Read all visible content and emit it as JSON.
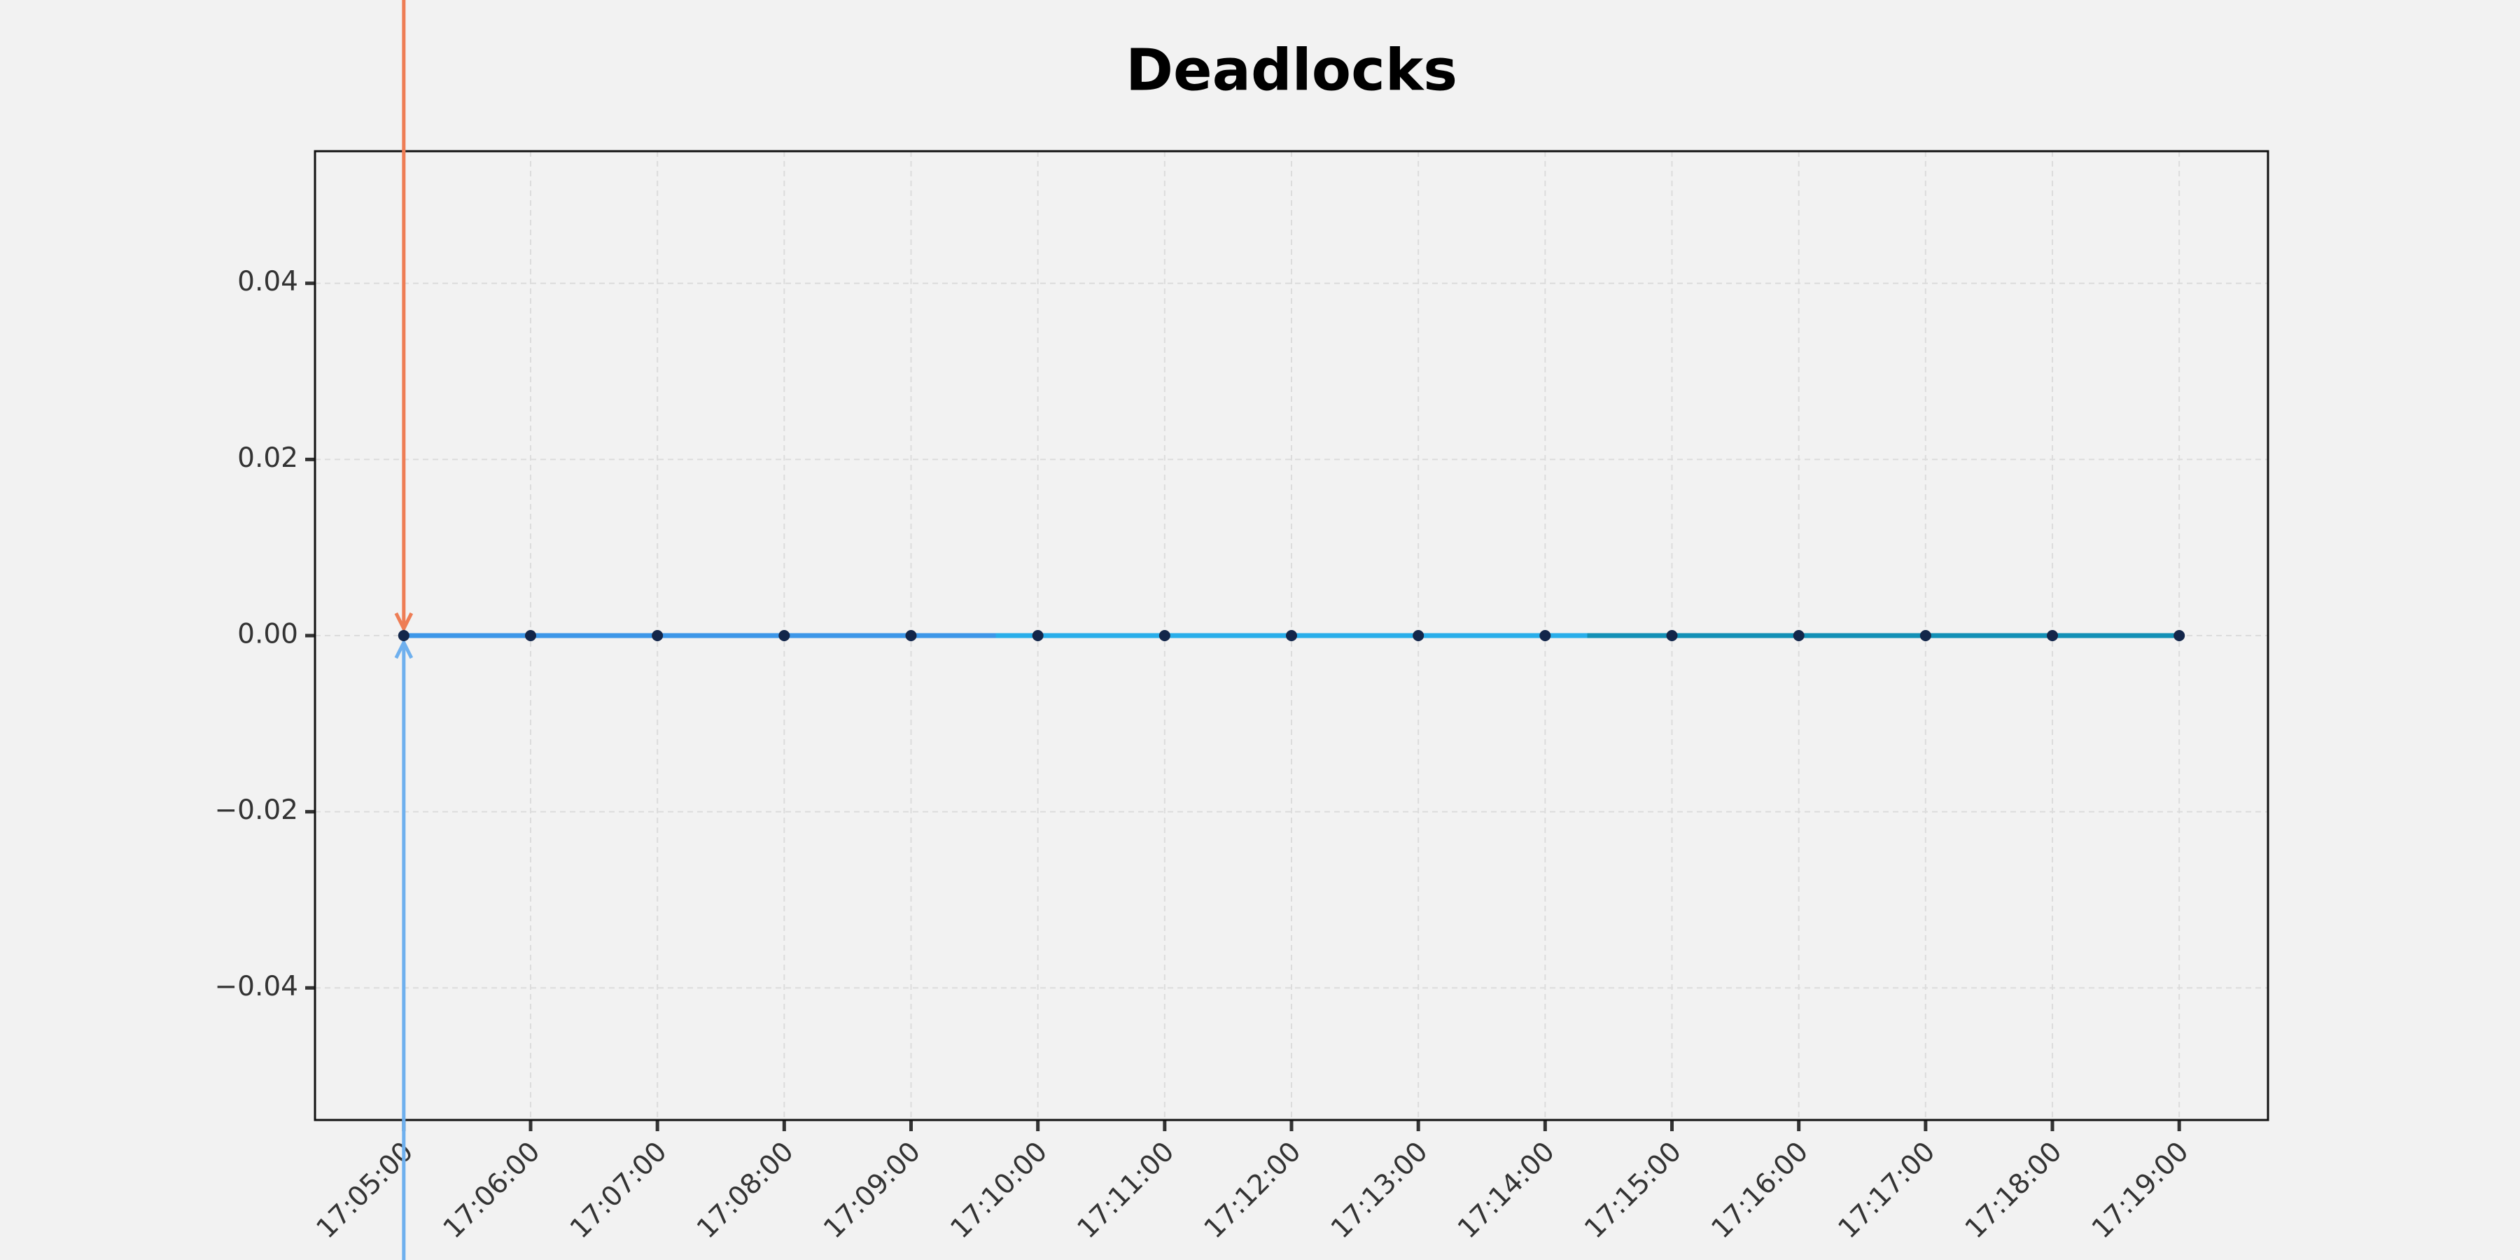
{
  "chart_data": {
    "type": "line",
    "title": "Deadlocks",
    "categories": [
      "17:05:00",
      "17:06:00",
      "17:07:00",
      "17:08:00",
      "17:09:00",
      "17:10:00",
      "17:11:00",
      "17:12:00",
      "17:13:00",
      "17:14:00",
      "17:15:00",
      "17:16:00",
      "17:17:00",
      "17:18:00",
      "17:19:00"
    ],
    "series": [
      {
        "values": [
          0,
          0,
          0,
          0,
          0,
          0,
          0,
          0,
          0,
          0,
          0,
          0,
          0,
          0,
          0
        ],
        "colors": [
          "#3d97e8",
          "#29aeea",
          "#1390b6"
        ],
        "marker_color": "#13264a"
      }
    ],
    "ylim": [
      -0.055,
      0.055
    ],
    "yticks": [
      {
        "value": -0.04,
        "label": "−0.04"
      },
      {
        "value": -0.02,
        "label": "−0.02"
      },
      {
        "value": 0,
        "label": "0.00"
      },
      {
        "value": 0.02,
        "label": "0.02"
      },
      {
        "value": 0.04,
        "label": "0.04"
      }
    ],
    "grid": true
  }
}
